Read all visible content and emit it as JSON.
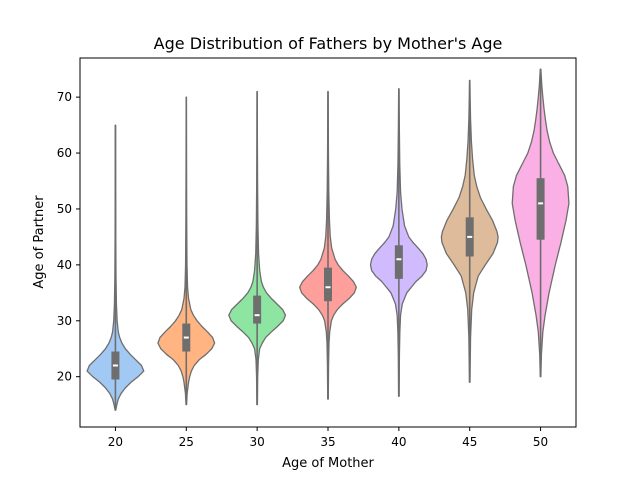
{
  "chart_data": {
    "type": "violin",
    "title": "Age Distribution of Fathers by Mother's Age",
    "xlabel": "Age of Mother",
    "ylabel": "Age of Partner",
    "ylim": [
      11,
      77
    ],
    "yticks": [
      20,
      30,
      40,
      50,
      60,
      70
    ],
    "grid": false,
    "legend": "none",
    "categories": [
      "20",
      "25",
      "30",
      "35",
      "40",
      "45",
      "50"
    ],
    "colors": [
      "#a1c9f4",
      "#ffb482",
      "#8de5a1",
      "#ff9f9b",
      "#d0bbff",
      "#debb9b",
      "#fab0e4"
    ],
    "violins": [
      {
        "category": "20",
        "min": 14,
        "max": 65,
        "q1": 19.5,
        "median": 22,
        "q3": 24.5,
        "mode": 21,
        "profile": [
          [
            14,
            0.01
          ],
          [
            15,
            0.05
          ],
          [
            16,
            0.1
          ],
          [
            17,
            0.2
          ],
          [
            18,
            0.35
          ],
          [
            19,
            0.55
          ],
          [
            20,
            0.8
          ],
          [
            21,
            1.0
          ],
          [
            22,
            0.92
          ],
          [
            23,
            0.72
          ],
          [
            24,
            0.52
          ],
          [
            25,
            0.35
          ],
          [
            26,
            0.23
          ],
          [
            27,
            0.15
          ],
          [
            28,
            0.1
          ],
          [
            30,
            0.06
          ],
          [
            33,
            0.035
          ],
          [
            38,
            0.02
          ],
          [
            45,
            0.012
          ],
          [
            55,
            0.008
          ],
          [
            65,
            0.004
          ]
        ]
      },
      {
        "category": "25",
        "min": 15,
        "max": 70,
        "q1": 24.5,
        "median": 27,
        "q3": 29.5,
        "mode": 26,
        "profile": [
          [
            15,
            0.01
          ],
          [
            17,
            0.03
          ],
          [
            19,
            0.08
          ],
          [
            20,
            0.12
          ],
          [
            21,
            0.18
          ],
          [
            22,
            0.28
          ],
          [
            23,
            0.45
          ],
          [
            24,
            0.7
          ],
          [
            25,
            0.9
          ],
          [
            26,
            1.0
          ],
          [
            27,
            0.93
          ],
          [
            28,
            0.75
          ],
          [
            29,
            0.55
          ],
          [
            30,
            0.38
          ],
          [
            31,
            0.25
          ],
          [
            32,
            0.16
          ],
          [
            34,
            0.08
          ],
          [
            36,
            0.045
          ],
          [
            40,
            0.025
          ],
          [
            48,
            0.014
          ],
          [
            58,
            0.008
          ],
          [
            70,
            0.004
          ]
        ]
      },
      {
        "category": "30",
        "min": 15,
        "max": 71,
        "q1": 29.5,
        "median": 31,
        "q3": 34.5,
        "mode": 31,
        "profile": [
          [
            15,
            0.01
          ],
          [
            20,
            0.02
          ],
          [
            23,
            0.04
          ],
          [
            25,
            0.09
          ],
          [
            26,
            0.18
          ],
          [
            27,
            0.3
          ],
          [
            28,
            0.5
          ],
          [
            29,
            0.72
          ],
          [
            30,
            0.92
          ],
          [
            31,
            1.0
          ],
          [
            32,
            0.9
          ],
          [
            33,
            0.7
          ],
          [
            34,
            0.5
          ],
          [
            35,
            0.33
          ],
          [
            36,
            0.22
          ],
          [
            37,
            0.15
          ],
          [
            39,
            0.09
          ],
          [
            42,
            0.05
          ],
          [
            47,
            0.028
          ],
          [
            55,
            0.015
          ],
          [
            63,
            0.008
          ],
          [
            71,
            0.004
          ]
        ]
      },
      {
        "category": "35",
        "min": 16,
        "max": 71,
        "q1": 33.5,
        "median": 36,
        "q3": 39.5,
        "mode": 36,
        "profile": [
          [
            16,
            0.01
          ],
          [
            22,
            0.02
          ],
          [
            26,
            0.035
          ],
          [
            28,
            0.06
          ],
          [
            30,
            0.12
          ],
          [
            31,
            0.2
          ],
          [
            32,
            0.33
          ],
          [
            33,
            0.52
          ],
          [
            34,
            0.75
          ],
          [
            35,
            0.93
          ],
          [
            36,
            1.0
          ],
          [
            37,
            0.9
          ],
          [
            38,
            0.72
          ],
          [
            39,
            0.52
          ],
          [
            40,
            0.36
          ],
          [
            41,
            0.25
          ],
          [
            43,
            0.13
          ],
          [
            45,
            0.08
          ],
          [
            48,
            0.05
          ],
          [
            53,
            0.028
          ],
          [
            60,
            0.015
          ],
          [
            71,
            0.005
          ]
        ]
      },
      {
        "category": "40",
        "min": 16.5,
        "max": 71.5,
        "q1": 37.5,
        "median": 41,
        "q3": 43.5,
        "mode": 40,
        "profile": [
          [
            16.5,
            0.01
          ],
          [
            24,
            0.02
          ],
          [
            28,
            0.035
          ],
          [
            31,
            0.06
          ],
          [
            33,
            0.12
          ],
          [
            35,
            0.28
          ],
          [
            37,
            0.6
          ],
          [
            38,
            0.82
          ],
          [
            39,
            0.96
          ],
          [
            40,
            1.0
          ],
          [
            41,
            0.96
          ],
          [
            42,
            0.85
          ],
          [
            43,
            0.68
          ],
          [
            44,
            0.5
          ],
          [
            45,
            0.35
          ],
          [
            47,
            0.2
          ],
          [
            50,
            0.11
          ],
          [
            53,
            0.06
          ],
          [
            58,
            0.032
          ],
          [
            64,
            0.018
          ],
          [
            71.5,
            0.006
          ]
        ]
      },
      {
        "category": "45",
        "min": 19,
        "max": 73,
        "q1": 41.5,
        "median": 45,
        "q3": 48.5,
        "mode": 45,
        "profile": [
          [
            19,
            0.01
          ],
          [
            27,
            0.03
          ],
          [
            32,
            0.07
          ],
          [
            35,
            0.14
          ],
          [
            38,
            0.3
          ],
          [
            40,
            0.55
          ],
          [
            42,
            0.82
          ],
          [
            44,
            0.98
          ],
          [
            45,
            1.0
          ],
          [
            46,
            0.96
          ],
          [
            48,
            0.8
          ],
          [
            50,
            0.58
          ],
          [
            52,
            0.38
          ],
          [
            54,
            0.25
          ],
          [
            56,
            0.16
          ],
          [
            59,
            0.1
          ],
          [
            62,
            0.06
          ],
          [
            66,
            0.03
          ],
          [
            70,
            0.015
          ],
          [
            73,
            0.006
          ]
        ]
      },
      {
        "category": "50",
        "min": 20,
        "max": 75,
        "q1": 44.5,
        "median": 51,
        "q3": 55.5,
        "mode": 51,
        "profile": [
          [
            20,
            0.01
          ],
          [
            24,
            0.03
          ],
          [
            28,
            0.08
          ],
          [
            31,
            0.16
          ],
          [
            35,
            0.3
          ],
          [
            40,
            0.52
          ],
          [
            44,
            0.72
          ],
          [
            48,
            0.9
          ],
          [
            51,
            1.0
          ],
          [
            54,
            0.96
          ],
          [
            56,
            0.85
          ],
          [
            58,
            0.65
          ],
          [
            60,
            0.45
          ],
          [
            62,
            0.32
          ],
          [
            64,
            0.23
          ],
          [
            66,
            0.17
          ],
          [
            68,
            0.12
          ],
          [
            70,
            0.08
          ],
          [
            72,
            0.045
          ],
          [
            75,
            0.01
          ]
        ]
      }
    ]
  }
}
